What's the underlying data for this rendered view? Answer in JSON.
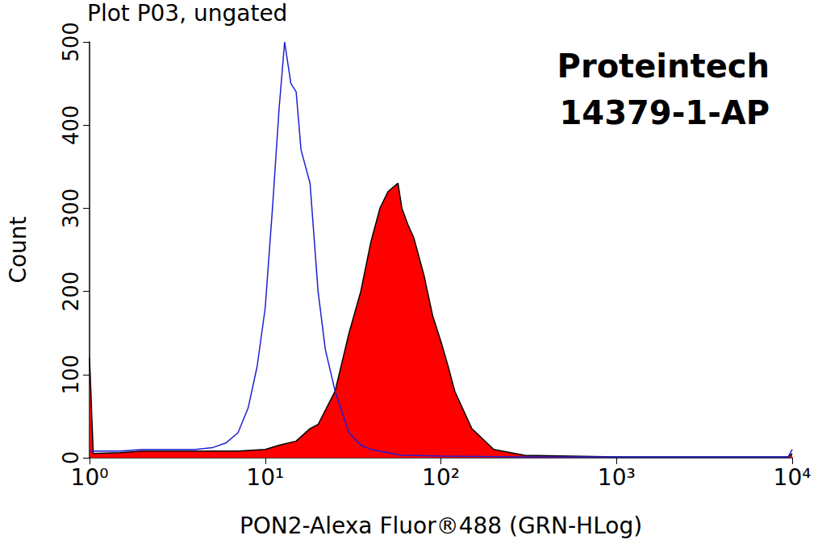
{
  "chart_data": {
    "type": "histogram",
    "title": "Plot P03, ungated",
    "annotations": [
      "Proteintech",
      "14379-1-AP"
    ],
    "x_label": "PON2-Alexa Fluor®488 (GRN-HLog)",
    "y_label": "Count",
    "log": "x",
    "grid": false,
    "xlim": [
      1,
      10000
    ],
    "xticks": [
      {
        "value": 1,
        "label": "10⁰"
      },
      {
        "value": 10,
        "label": "10¹"
      },
      {
        "value": 100,
        "label": "10²"
      },
      {
        "value": 1000,
        "label": "10³"
      },
      {
        "value": 10000,
        "label": "10⁴"
      }
    ],
    "ylim": [
      0,
      500
    ],
    "yticks": [
      0,
      100,
      200,
      300,
      400,
      500
    ],
    "series": [
      {
        "type": "line",
        "color": "#1f1fd0",
        "x": [
          1,
          1.5,
          2,
          3,
          4,
          5,
          6,
          7,
          8,
          9,
          10,
          11,
          12,
          12.9,
          14,
          15,
          16,
          18,
          20,
          22,
          25,
          30,
          35,
          40,
          60,
          100,
          300,
          1000,
          5000,
          9500,
          10000
        ],
        "values": [
          8,
          8,
          10,
          10,
          10,
          12,
          18,
          30,
          60,
          110,
          180,
          300,
          420,
          500,
          450,
          440,
          370,
          330,
          200,
          130,
          80,
          30,
          15,
          10,
          3,
          2,
          1,
          1,
          1,
          1,
          10
        ]
      },
      {
        "type": "area",
        "color": "#ff0000",
        "x": [
          1,
          1.05,
          1.5,
          2,
          3,
          5,
          7,
          10,
          12,
          15,
          18,
          20,
          25,
          30,
          35,
          40,
          45,
          50,
          57,
          60,
          65,
          70,
          80,
          90,
          100,
          110,
          120,
          150,
          200,
          300,
          1000,
          9500,
          10000
        ],
        "values": [
          120,
          5,
          6,
          8,
          8,
          8,
          8,
          10,
          15,
          20,
          35,
          40,
          80,
          150,
          200,
          260,
          300,
          320,
          330,
          300,
          280,
          265,
          220,
          170,
          140,
          110,
          80,
          35,
          10,
          3,
          1,
          1,
          5
        ]
      }
    ]
  }
}
